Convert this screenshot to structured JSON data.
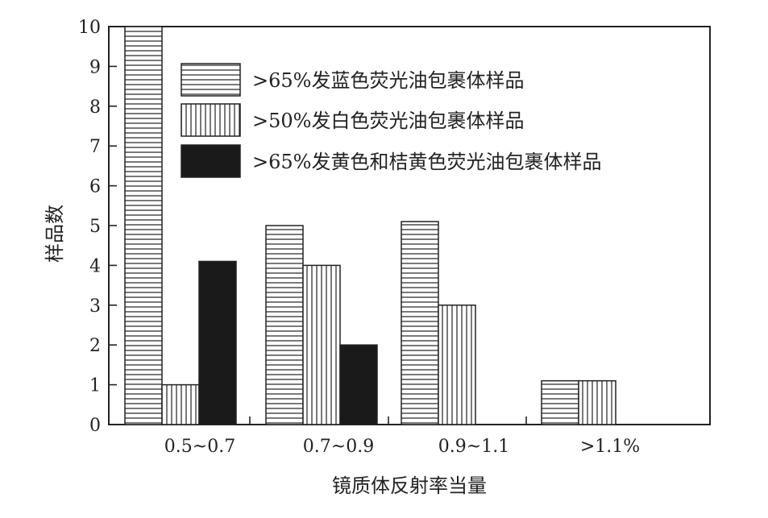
{
  "chart_data": {
    "type": "bar",
    "title": "",
    "xlabel": "镜质体反射率当量",
    "ylabel": "样品数",
    "ylim": [
      0,
      10
    ],
    "yticks": [
      0,
      1,
      2,
      3,
      4,
      5,
      6,
      7,
      8,
      9,
      10
    ],
    "categories": [
      "0.5~0.7",
      "0.7~0.9",
      "0.9~1.1",
      ">1.1%"
    ],
    "grid": false,
    "legend_position": "top-right",
    "series": [
      {
        "name": ">65%发蓝色荧光油包裹体样品",
        "pattern": "horizontal-lines",
        "values": [
          10,
          5,
          5.1,
          1.1
        ]
      },
      {
        "name": ">50%发白色荧光油包裹体样品",
        "pattern": "vertical-lines",
        "values": [
          1,
          4,
          3,
          1.1
        ]
      },
      {
        "name": ">65%发黄色和桔黄色荧光油包裹体样品",
        "pattern": "solid-black",
        "values": [
          4.1,
          2,
          0,
          0
        ]
      }
    ]
  }
}
